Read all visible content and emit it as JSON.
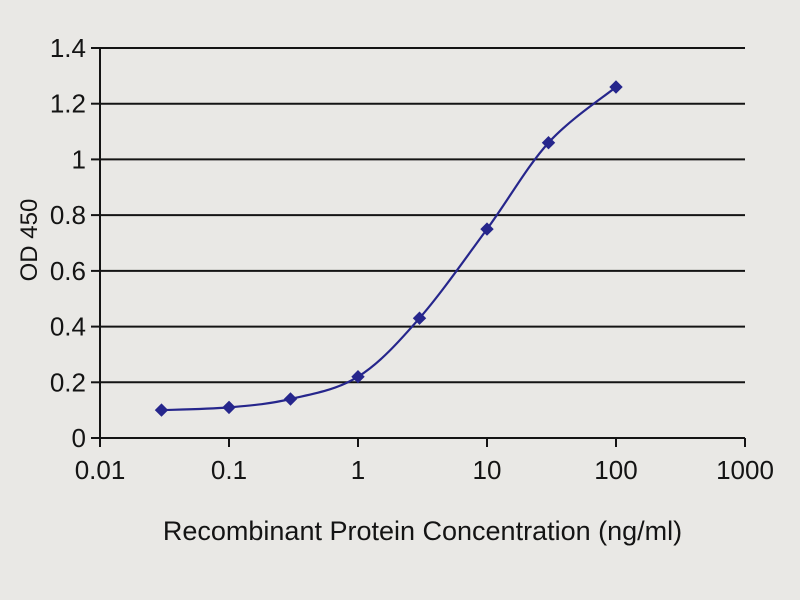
{
  "chart_data": {
    "type": "line",
    "title": "",
    "xlabel": "Recombinant Protein Concentration (ng/ml)",
    "ylabel": "OD 450",
    "x_scale": "log",
    "xlim": [
      0.01,
      1000
    ],
    "ylim": [
      0,
      1.4
    ],
    "x_ticks": [
      0.01,
      0.1,
      1,
      10,
      100,
      1000
    ],
    "x_tick_labels": [
      "0.01",
      "0.1",
      "1",
      "10",
      "100",
      "1000"
    ],
    "y_ticks": [
      0,
      0.2,
      0.4,
      0.6,
      0.8,
      1,
      1.2,
      1.4
    ],
    "y_tick_labels": [
      "0",
      "0.2",
      "0.4",
      "0.6",
      "0.8",
      "1",
      "1.2",
      "1.4"
    ],
    "grid": "horizontal",
    "legend": "none",
    "series": [
      {
        "name": "OD 450",
        "x": [
          0.03,
          0.1,
          0.3,
          1,
          3,
          10,
          30,
          100
        ],
        "y": [
          0.1,
          0.11,
          0.14,
          0.22,
          0.43,
          0.75,
          1.06,
          1.26
        ],
        "color": "#26268c",
        "marker": "diamond"
      }
    ]
  },
  "colors": {
    "background": "#e9e8e5",
    "axis": "#141414",
    "text": "#141414",
    "series": "#26268c"
  }
}
